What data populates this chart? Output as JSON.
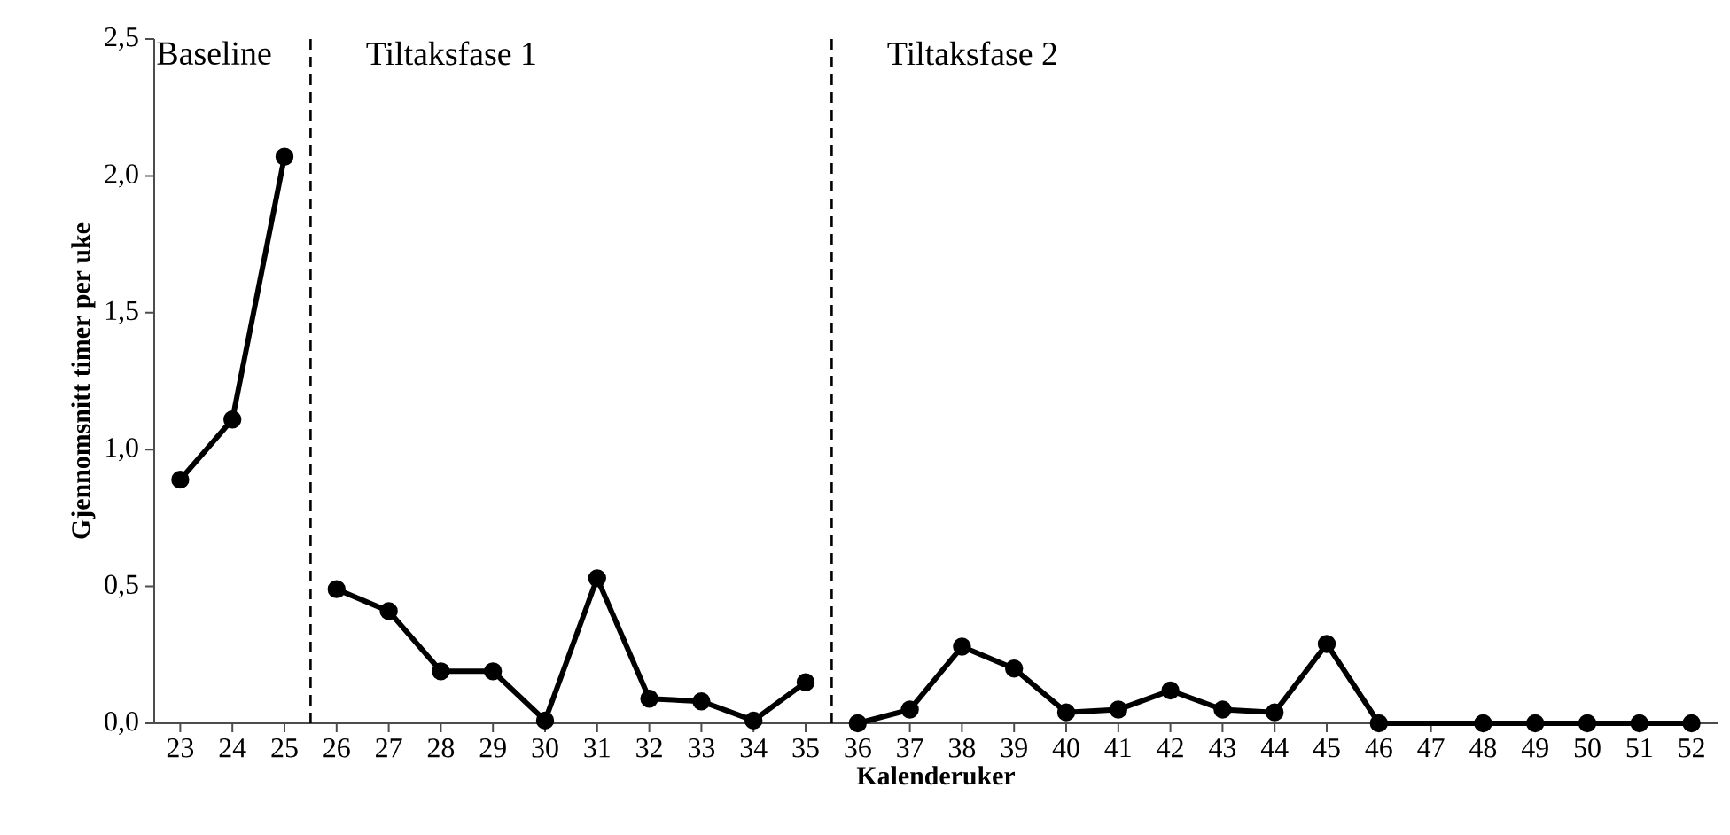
{
  "chart_data": {
    "type": "line",
    "xlabel": "Kalenderuker",
    "ylabel": "Gjennomsnitt timer per uke",
    "xlim": [
      22.5,
      52.5
    ],
    "xticks": [
      23,
      24,
      25,
      26,
      27,
      28,
      29,
      30,
      31,
      32,
      33,
      34,
      35,
      36,
      37,
      38,
      39,
      40,
      41,
      42,
      43,
      44,
      45,
      46,
      47,
      48,
      49,
      50,
      51,
      52
    ],
    "ylim": [
      0,
      2.5
    ],
    "yticks": [
      {
        "value": 0,
        "label": "0,0"
      },
      {
        "value": 0.5,
        "label": "0,5"
      },
      {
        "value": 1,
        "label": "1,0"
      },
      {
        "value": 1.5,
        "label": "1,5"
      },
      {
        "value": 2,
        "label": "2,0"
      },
      {
        "value": 2.5,
        "label": "2,5"
      }
    ],
    "series": [
      {
        "color": "#000000",
        "x": [
          23,
          24,
          25
        ],
        "values": [
          0.89,
          1.11,
          2.07
        ]
      },
      {
        "color": "#000000",
        "x": [
          26,
          27,
          28,
          29,
          30,
          31,
          32,
          33,
          34,
          35
        ],
        "values": [
          0.49,
          0.41,
          0.19,
          0.19,
          0.01,
          0.53,
          0.09,
          0.08,
          0.01,
          0.15
        ]
      },
      {
        "color": "#000000",
        "x": [
          36,
          37,
          38,
          39,
          40,
          41,
          42,
          43,
          44,
          45,
          46,
          48,
          49,
          50,
          51,
          52
        ],
        "values": [
          0,
          0.05,
          0.28,
          0.2,
          0.04,
          0.05,
          0.12,
          0.05,
          0.04,
          0.29,
          0,
          0,
          0,
          0,
          0,
          0
        ]
      }
    ],
    "ref_lines": [
      {
        "axis": "x",
        "value": 25.5,
        "color": "#000000",
        "line_style": "dashed"
      },
      {
        "axis": "x",
        "value": 35.5,
        "color": "#000000",
        "line_style": "dashed"
      }
    ],
    "annotations": [
      "Baseline",
      "Tiltaksfase 1",
      "Tiltaksfase 2"
    ],
    "marker": "circle",
    "line_style": "solid",
    "grid": false
  }
}
